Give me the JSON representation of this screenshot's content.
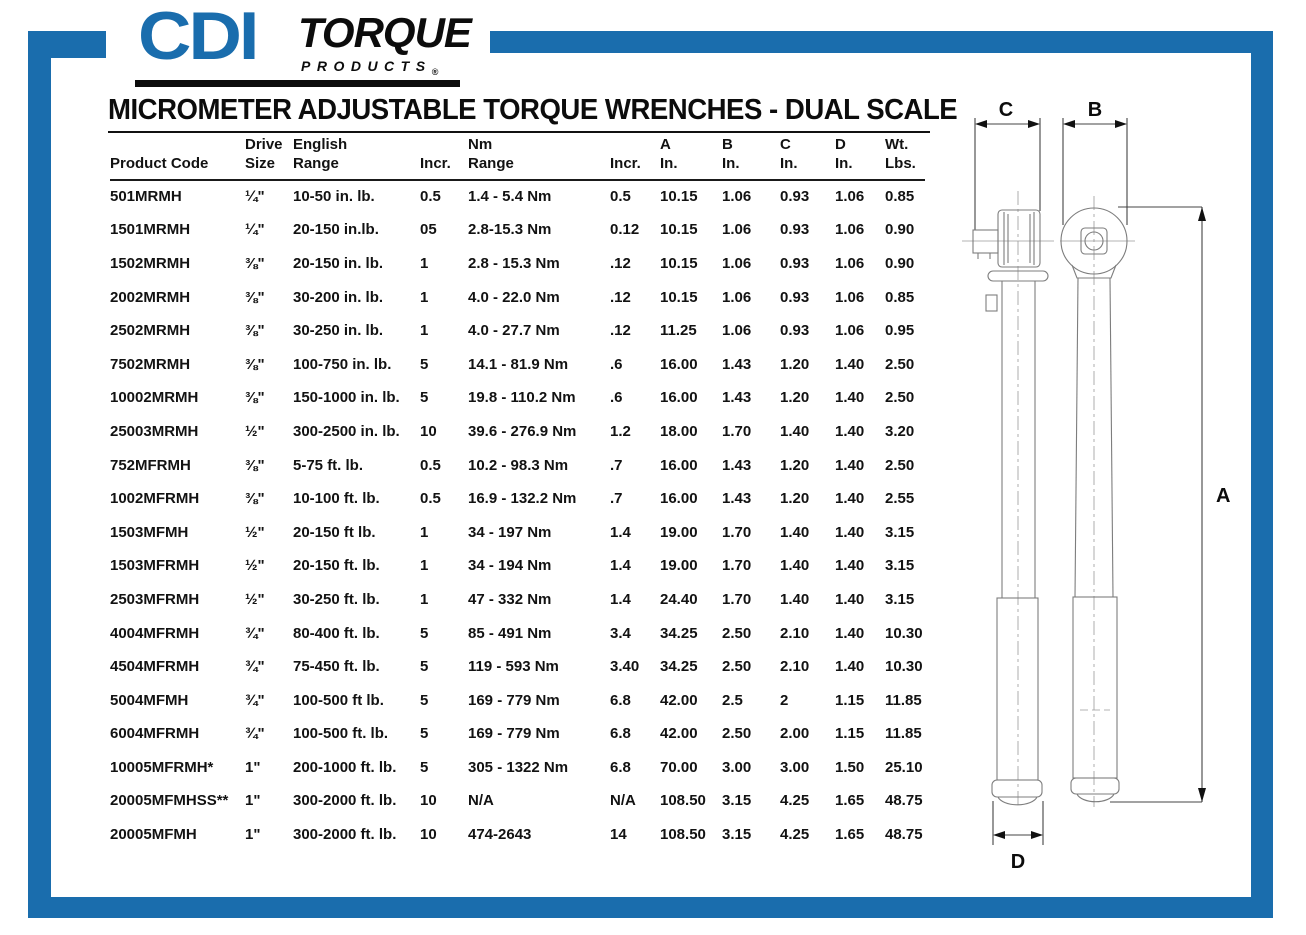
{
  "brand": {
    "cdi": "CDI",
    "torque": "TORQUE",
    "products": "PRODUCTS",
    "registered": "®"
  },
  "title": "MICROMETER ADJUSTABLE TORQUE WRENCHES - DUAL SCALE",
  "colors": {
    "frame_blue": "#1a6dad",
    "text_black": "#121212",
    "diagram_line": "#7d7d7d"
  },
  "table": {
    "headers": [
      [
        "",
        "Product Code"
      ],
      [
        "Drive",
        "Size"
      ],
      [
        "English",
        "Range"
      ],
      [
        "",
        "Incr."
      ],
      [
        "Nm",
        "Range"
      ],
      [
        "",
        "Incr."
      ],
      [
        "A",
        "In."
      ],
      [
        "B",
        "In."
      ],
      [
        "C",
        "In."
      ],
      [
        "D",
        "In."
      ],
      [
        "Wt.",
        "Lbs."
      ]
    ],
    "rows": [
      [
        "501MRMH",
        "¼\"",
        "10-50 in. lb.",
        "0.5",
        "1.4 - 5.4 Nm",
        "0.5",
        "10.15",
        "1.06",
        "0.93",
        "1.06",
        "0.85"
      ],
      [
        "1501MRMH",
        "¼\"",
        "20-150 in.lb.",
        "05",
        "2.8-15.3 Nm",
        "0.12",
        "10.15",
        "1.06",
        "0.93",
        "1.06",
        "0.90"
      ],
      [
        "1502MRMH",
        "⅜\"",
        "20-150 in. lb.",
        "1",
        "2.8 - 15.3 Nm",
        ".12",
        "10.15",
        "1.06",
        "0.93",
        "1.06",
        "0.90"
      ],
      [
        "2002MRMH",
        "⅜\"",
        "30-200 in. lb.",
        "1",
        "4.0 - 22.0 Nm",
        ".12",
        "10.15",
        "1.06",
        "0.93",
        "1.06",
        "0.85"
      ],
      [
        "2502MRMH",
        "⅜\"",
        "30-250 in. lb.",
        "1",
        "4.0 - 27.7 Nm",
        ".12",
        "11.25",
        "1.06",
        "0.93",
        "1.06",
        "0.95"
      ],
      [
        "7502MRMH",
        "⅜\"",
        "100-750 in. lb.",
        "5",
        "14.1 - 81.9 Nm",
        ".6",
        "16.00",
        "1.43",
        "1.20",
        "1.40",
        "2.50"
      ],
      [
        "10002MRMH",
        "⅜\"",
        "150-1000 in. lb.",
        "5",
        "19.8 - 110.2 Nm",
        ".6",
        "16.00",
        "1.43",
        "1.20",
        "1.40",
        "2.50"
      ],
      [
        "25003MRMH",
        "½\"",
        "300-2500 in. lb.",
        "10",
        "39.6 - 276.9 Nm",
        "1.2",
        "18.00",
        "1.70",
        "1.40",
        "1.40",
        "3.20"
      ],
      [
        "752MFRMH",
        "⅜\"",
        "5-75 ft. lb.",
        "0.5",
        "10.2 - 98.3 Nm",
        ".7",
        "16.00",
        "1.43",
        "1.20",
        "1.40",
        "2.50"
      ],
      [
        "1002MFRMH",
        "⅜\"",
        "10-100 ft. lb.",
        "0.5",
        "16.9 - 132.2 Nm",
        ".7",
        "16.00",
        "1.43",
        "1.20",
        "1.40",
        "2.55"
      ],
      [
        "1503MFMH",
        "½\"",
        "20-150 ft lb.",
        "1",
        "34 - 197 Nm",
        "1.4",
        "19.00",
        "1.70",
        "1.40",
        "1.40",
        "3.15"
      ],
      [
        "1503MFRMH",
        "½\"",
        "20-150 ft. lb.",
        "1",
        "34 - 194 Nm",
        "1.4",
        "19.00",
        "1.70",
        "1.40",
        "1.40",
        "3.15"
      ],
      [
        "2503MFRMH",
        "½\"",
        "30-250 ft. lb.",
        "1",
        "47 - 332 Nm",
        "1.4",
        "24.40",
        "1.70",
        "1.40",
        "1.40",
        "3.15"
      ],
      [
        "4004MFRMH",
        "¾\"",
        "80-400 ft. lb.",
        "5",
        "85 - 491 Nm",
        "3.4",
        "34.25",
        "2.50",
        "2.10",
        "1.40",
        "10.30"
      ],
      [
        "4504MFRMH",
        "¾\"",
        "75-450 ft. lb.",
        "5",
        "119 - 593 Nm",
        "3.40",
        "34.25",
        "2.50",
        "2.10",
        "1.40",
        "10.30"
      ],
      [
        "5004MFMH",
        "¾\"",
        "100-500 ft lb.",
        "5",
        "169 - 779 Nm",
        "6.8",
        "42.00",
        "2.5",
        "2",
        "1.15",
        "11.85"
      ],
      [
        "6004MFRMH",
        "¾\"",
        "100-500 ft. lb.",
        "5",
        "169 - 779 Nm",
        "6.8",
        "42.00",
        "2.50",
        "2.00",
        "1.15",
        "11.85"
      ],
      [
        "10005MFRMH*",
        "1\"",
        "200-1000 ft. lb.",
        "5",
        "305 - 1322 Nm",
        "6.8",
        "70.00",
        "3.00",
        "3.00",
        "1.50",
        "25.10"
      ],
      [
        "20005MFMHSS**",
        "1\"",
        "300-2000 ft. lb.",
        "10",
        "N/A",
        "N/A",
        "108.50",
        "3.15",
        "4.25",
        "1.65",
        "48.75"
      ],
      [
        "20005MFMH",
        "1\"",
        "300-2000 ft. lb.",
        "10",
        "474-2643",
        "14",
        "108.50",
        "3.15",
        "4.25",
        "1.65",
        "48.75"
      ]
    ]
  },
  "diagram": {
    "labels": {
      "a": "A",
      "b": "B",
      "c": "C",
      "d": "D"
    }
  }
}
